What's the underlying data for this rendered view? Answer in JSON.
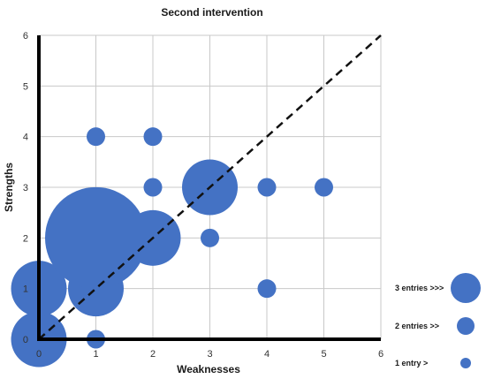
{
  "chart_data": {
    "type": "scatter",
    "title": "Second intervention",
    "xlabel": "Weaknesses",
    "ylabel": "Strengths",
    "xlim": [
      0,
      6
    ],
    "ylim": [
      0,
      6
    ],
    "x_ticks": [
      "0",
      "1",
      "2",
      "3",
      "4",
      "5",
      "6"
    ],
    "y_ticks": [
      "0",
      "1",
      "2",
      "3",
      "4",
      "5",
      "6"
    ],
    "grid": true,
    "diagonal_reference_line": {
      "from": [
        0,
        0
      ],
      "to": [
        6,
        6
      ],
      "style": "dashed"
    },
    "point_color": "#4472C4",
    "points": [
      {
        "x": 0,
        "y": 0,
        "size": 9
      },
      {
        "x": 0,
        "y": 1,
        "size": 9
      },
      {
        "x": 1,
        "y": 0,
        "size": 1
      },
      {
        "x": 1,
        "y": 1,
        "size": 9
      },
      {
        "x": 1,
        "y": 2,
        "size": 30
      },
      {
        "x": 1,
        "y": 4,
        "size": 1
      },
      {
        "x": 2,
        "y": 2,
        "size": 9
      },
      {
        "x": 2,
        "y": 3,
        "size": 1
      },
      {
        "x": 2,
        "y": 4,
        "size": 1
      },
      {
        "x": 3,
        "y": 2,
        "size": 1
      },
      {
        "x": 3,
        "y": 3,
        "size": 9
      },
      {
        "x": 4,
        "y": 1,
        "size": 1
      },
      {
        "x": 4,
        "y": 3,
        "size": 1
      },
      {
        "x": 5,
        "y": 3,
        "size": 1
      }
    ],
    "legend": {
      "position": "bottom-right",
      "items": [
        {
          "label": "3 entries >>>",
          "size": 3
        },
        {
          "label": "2 entries >>",
          "size": 2
        },
        {
          "label": "1 entry >",
          "size": 1
        }
      ]
    }
  }
}
